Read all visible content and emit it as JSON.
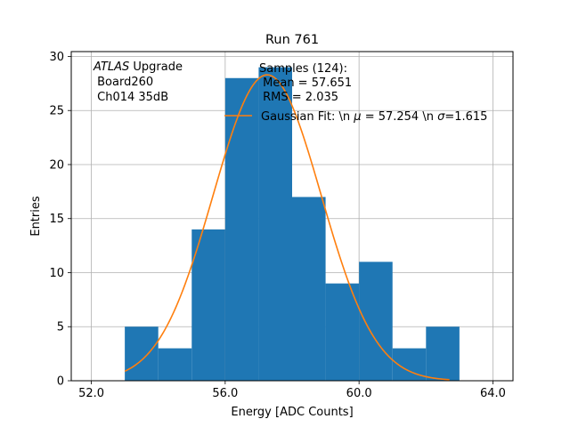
{
  "chart_data": {
    "type": "bar",
    "title": "Run 761",
    "xlabel": "Energy [ADC Counts]",
    "ylabel": "Entries",
    "xlim": [
      51.4,
      64.6
    ],
    "ylim": [
      0,
      30.45
    ],
    "xticks": [
      52.0,
      56.0,
      60.0,
      64.0
    ],
    "xtick_labels": [
      "52.0",
      "56.0",
      "60.0",
      "64.0"
    ],
    "yticks": [
      0,
      5,
      10,
      15,
      20,
      25,
      30
    ],
    "ytick_labels": [
      "0",
      "5",
      "10",
      "15",
      "20",
      "25",
      "30"
    ],
    "grid": true,
    "histogram": {
      "bin_edges": [
        53,
        54,
        55,
        56,
        57,
        58,
        59,
        60,
        61,
        62,
        63
      ],
      "counts": [
        5,
        3,
        14,
        28,
        29,
        17,
        9,
        11,
        3,
        5
      ],
      "color": "#1f77b4"
    },
    "fit": {
      "name": "Gaussian Fit",
      "mu": 57.254,
      "sigma": 1.615,
      "amplitude": 28.3,
      "x_range": [
        53,
        62.7
      ],
      "color": "#ff7f0e"
    },
    "annotation": {
      "line1_italic": "ATLAS",
      "line1_rest": " Upgrade",
      "line2": " Board260",
      "line3": " Ch014 35dB"
    },
    "legend": {
      "header": "Samples (124):",
      "mean": " Mean = 57.651",
      "rms": " RMS = 2.035",
      "fit_label_a": "Gaussian Fit: \\n ",
      "fit_mu_symbol": "μ",
      "fit_label_b": " = 57.254 \\n ",
      "fit_sigma_symbol": "σ",
      "fit_label_c": "=1.615",
      "placement": "top-right"
    }
  }
}
